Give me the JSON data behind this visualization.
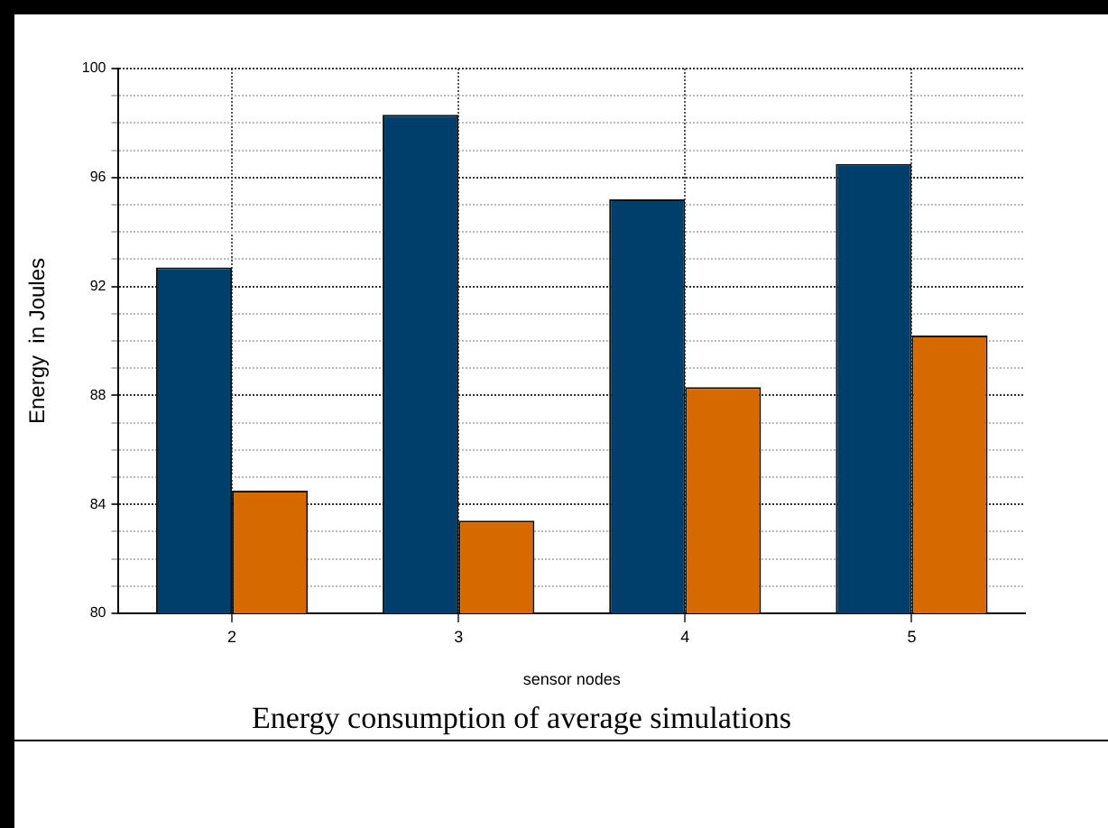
{
  "chart_data": {
    "type": "bar",
    "title": "Energy consumption of average simulations",
    "xlabel": "sensor nodes",
    "ylabel": "Energy  in Joules",
    "categories": [
      "2",
      "3",
      "4",
      "5"
    ],
    "series": [
      {
        "color": "#003f6b",
        "values": [
          92.7,
          98.3,
          95.2,
          96.5
        ]
      },
      {
        "color": "#d66a00",
        "values": [
          84.5,
          83.4,
          88.3,
          90.2
        ]
      }
    ],
    "ylim": [
      80,
      100
    ],
    "yticks": [
      80,
      {
        "value": 81,
        "label": null
      },
      {
        "value": 82,
        "label": null
      },
      {
        "value": 83,
        "label": null
      },
      84,
      {
        "value": 85,
        "label": null
      },
      {
        "value": 86,
        "label": null
      },
      {
        "value": 87,
        "label": null
      },
      88,
      {
        "value": 89,
        "label": null
      },
      {
        "value": 90,
        "label": null
      },
      {
        "value": 91,
        "label": null
      },
      92,
      {
        "value": 93,
        "label": null
      },
      {
        "value": 94,
        "label": null
      },
      {
        "value": 95,
        "label": null
      },
      96,
      {
        "value": 97,
        "label": null
      },
      {
        "value": 98,
        "label": null
      },
      {
        "value": 99,
        "label": null
      },
      100
    ],
    "grid": true
  }
}
